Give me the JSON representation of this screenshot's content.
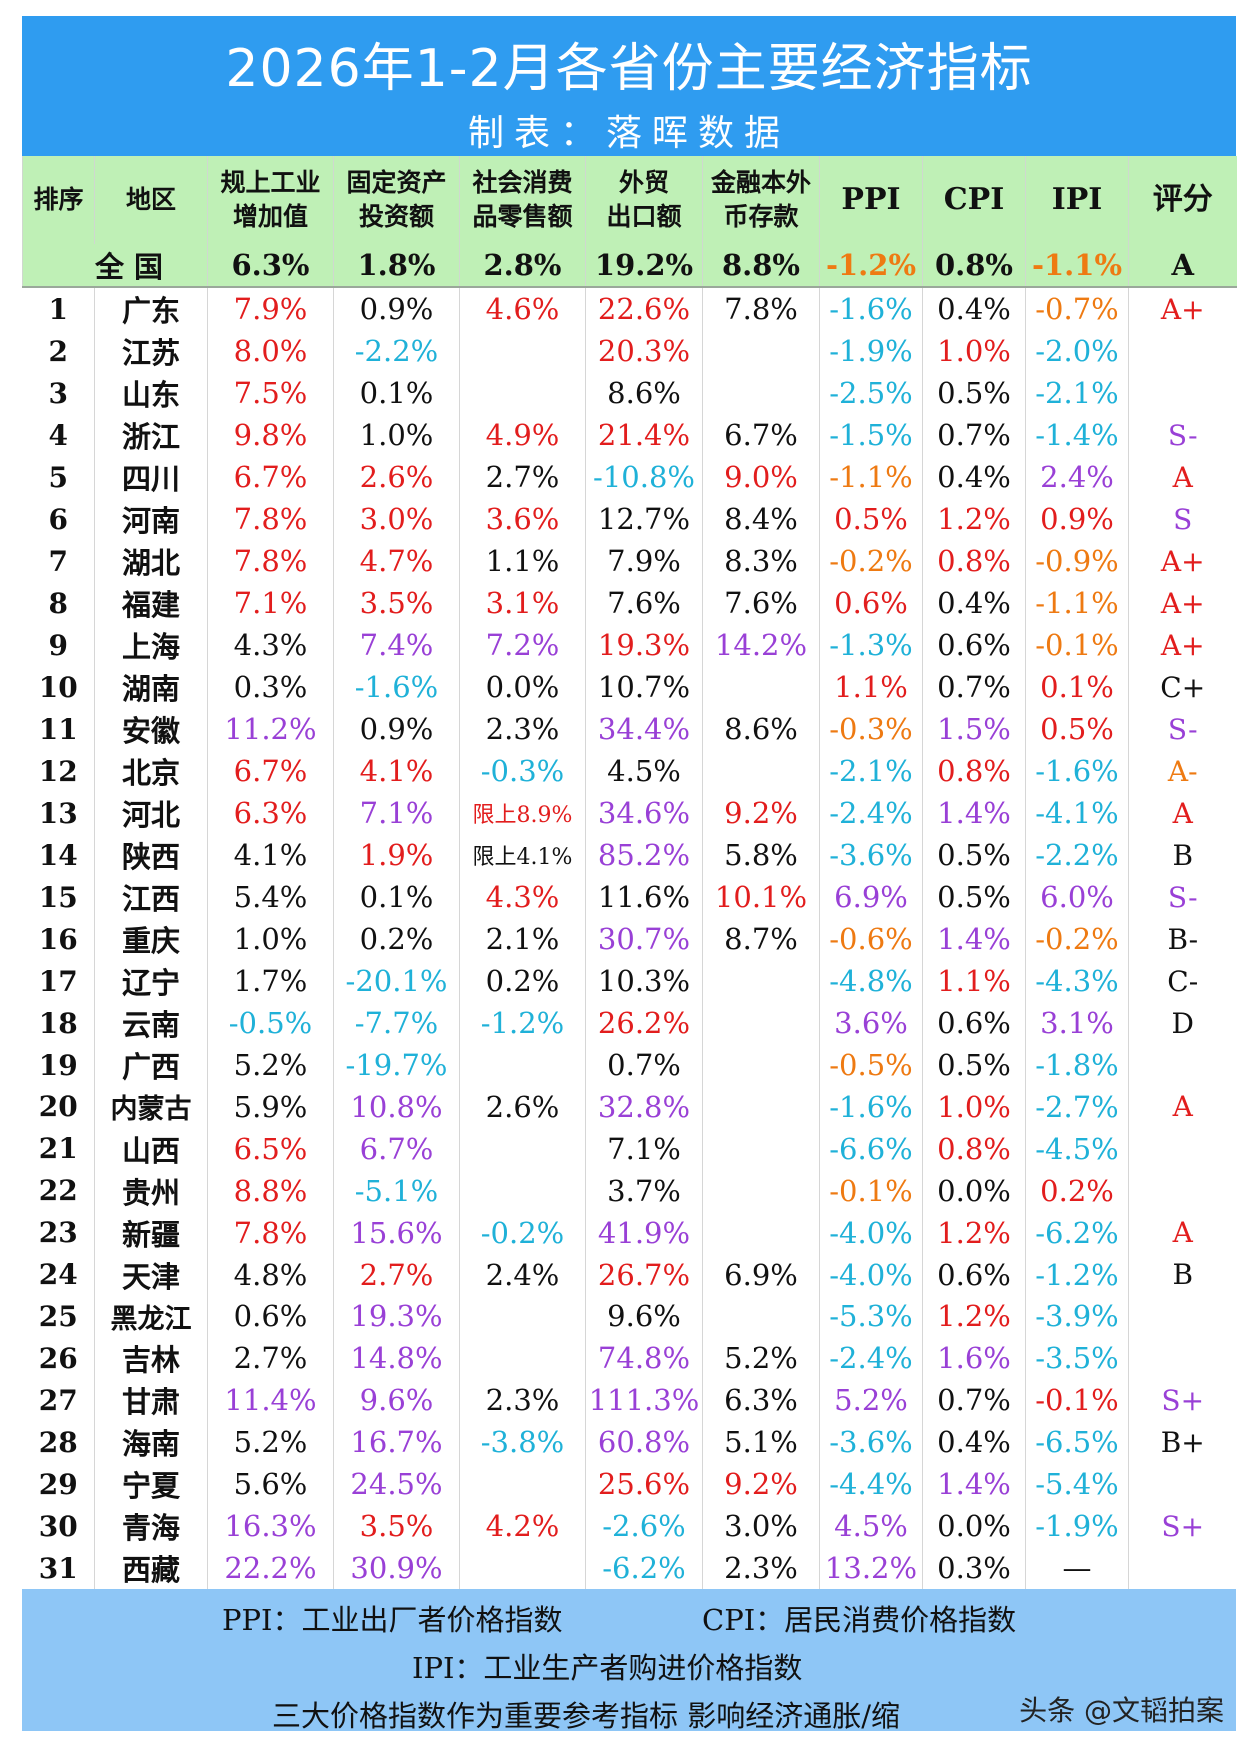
{
  "title": "2026年1-2月各省份主要经济指标",
  "subtitle": "制表：落晖数据",
  "headers": [
    "排序",
    "地区",
    "规上工业增加值",
    "固定资产投资额",
    "社会消费品零售额",
    "外贸出口额",
    "金融本外币存款",
    "PPI",
    "CPI",
    "IPI",
    "评分"
  ],
  "header_lines": [
    [
      "排序"
    ],
    [
      "地区"
    ],
    [
      "规上工业",
      "增加值"
    ],
    [
      "固定资产",
      "投资额"
    ],
    [
      "社会消费",
      "品零售额"
    ],
    [
      "外贸",
      "出口额"
    ],
    [
      "金融本外",
      "币存款"
    ],
    [
      "PPI"
    ],
    [
      "CPI"
    ],
    [
      "IPI"
    ],
    [
      "评分"
    ]
  ],
  "national": {
    "label": "全国",
    "cells": [
      [
        "6.3%",
        "black"
      ],
      [
        "1.8%",
        "black"
      ],
      [
        "2.8%",
        "black"
      ],
      [
        "19.2%",
        "black"
      ],
      [
        "8.8%",
        "black"
      ],
      [
        "-1.2%",
        "orange"
      ],
      [
        "0.8%",
        "black"
      ],
      [
        "-1.1%",
        "orange"
      ],
      [
        "A",
        "black"
      ]
    ]
  },
  "colors": {
    "black": "#111111",
    "red": "#e21d1d",
    "cyan": "#1fb1d8",
    "purple": "#9940d6",
    "orange": "#ee7a12",
    "banner": "#2f9cf0",
    "header_bg": "#bff0b6",
    "footer_bg": "#8ec6f6"
  },
  "rows": [
    [
      "1",
      "广东",
      [
        [
          "7.9%",
          "red"
        ],
        [
          "0.9%",
          "black"
        ],
        [
          "4.6%",
          "red"
        ],
        [
          "22.6%",
          "red"
        ],
        [
          "7.8%",
          "black"
        ],
        [
          "-1.6%",
          "cyan"
        ],
        [
          "0.4%",
          "black"
        ],
        [
          "-0.7%",
          "orange"
        ],
        [
          "A+",
          "red"
        ]
      ]
    ],
    [
      "2",
      "江苏",
      [
        [
          "8.0%",
          "red"
        ],
        [
          "-2.2%",
          "cyan"
        ],
        [
          "",
          "black"
        ],
        [
          "20.3%",
          "red"
        ],
        [
          "",
          "black"
        ],
        [
          "-1.9%",
          "cyan"
        ],
        [
          "1.0%",
          "red"
        ],
        [
          "-2.0%",
          "cyan"
        ],
        [
          "",
          "black"
        ]
      ]
    ],
    [
      "3",
      "山东",
      [
        [
          "7.5%",
          "red"
        ],
        [
          "0.1%",
          "black"
        ],
        [
          "",
          "black"
        ],
        [
          "8.6%",
          "black"
        ],
        [
          "",
          "black"
        ],
        [
          "-2.5%",
          "cyan"
        ],
        [
          "0.5%",
          "black"
        ],
        [
          "-2.1%",
          "cyan"
        ],
        [
          "",
          "black"
        ]
      ]
    ],
    [
      "4",
      "浙江",
      [
        [
          "9.8%",
          "red"
        ],
        [
          "1.0%",
          "black"
        ],
        [
          "4.9%",
          "red"
        ],
        [
          "21.4%",
          "red"
        ],
        [
          "6.7%",
          "black"
        ],
        [
          "-1.5%",
          "cyan"
        ],
        [
          "0.7%",
          "black"
        ],
        [
          "-1.4%",
          "cyan"
        ],
        [
          "S-",
          "purple"
        ]
      ]
    ],
    [
      "5",
      "四川",
      [
        [
          "6.7%",
          "red"
        ],
        [
          "2.6%",
          "red"
        ],
        [
          "2.7%",
          "black"
        ],
        [
          "-10.8%",
          "cyan"
        ],
        [
          "9.0%",
          "red"
        ],
        [
          "-1.1%",
          "orange"
        ],
        [
          "0.4%",
          "black"
        ],
        [
          "2.4%",
          "purple"
        ],
        [
          "A",
          "red"
        ]
      ]
    ],
    [
      "6",
      "河南",
      [
        [
          "7.8%",
          "red"
        ],
        [
          "3.0%",
          "red"
        ],
        [
          "3.6%",
          "red"
        ],
        [
          "12.7%",
          "black"
        ],
        [
          "8.4%",
          "black"
        ],
        [
          "0.5%",
          "red"
        ],
        [
          "1.2%",
          "red"
        ],
        [
          "0.9%",
          "red"
        ],
        [
          "S",
          "purple"
        ]
      ]
    ],
    [
      "7",
      "湖北",
      [
        [
          "7.8%",
          "red"
        ],
        [
          "4.7%",
          "red"
        ],
        [
          "1.1%",
          "black"
        ],
        [
          "7.9%",
          "black"
        ],
        [
          "8.3%",
          "black"
        ],
        [
          "-0.2%",
          "orange"
        ],
        [
          "0.8%",
          "red"
        ],
        [
          "-0.9%",
          "orange"
        ],
        [
          "A+",
          "red"
        ]
      ]
    ],
    [
      "8",
      "福建",
      [
        [
          "7.1%",
          "red"
        ],
        [
          "3.5%",
          "red"
        ],
        [
          "3.1%",
          "red"
        ],
        [
          "7.6%",
          "black"
        ],
        [
          "7.6%",
          "black"
        ],
        [
          "0.6%",
          "red"
        ],
        [
          "0.4%",
          "black"
        ],
        [
          "-1.1%",
          "orange"
        ],
        [
          "A+",
          "red"
        ]
      ]
    ],
    [
      "9",
      "上海",
      [
        [
          "4.3%",
          "black"
        ],
        [
          "7.4%",
          "purple"
        ],
        [
          "7.2%",
          "purple"
        ],
        [
          "19.3%",
          "red"
        ],
        [
          "14.2%",
          "purple"
        ],
        [
          "-1.3%",
          "cyan"
        ],
        [
          "0.6%",
          "black"
        ],
        [
          "-0.1%",
          "orange"
        ],
        [
          "A+",
          "red"
        ]
      ]
    ],
    [
      "10",
      "湖南",
      [
        [
          "0.3%",
          "black"
        ],
        [
          "-1.6%",
          "cyan"
        ],
        [
          "0.0%",
          "black"
        ],
        [
          "10.7%",
          "black"
        ],
        [
          "",
          "black"
        ],
        [
          "1.1%",
          "red"
        ],
        [
          "0.7%",
          "black"
        ],
        [
          "0.1%",
          "red"
        ],
        [
          "C+",
          "black"
        ]
      ]
    ],
    [
      "11",
      "安徽",
      [
        [
          "11.2%",
          "purple"
        ],
        [
          "0.9%",
          "black"
        ],
        [
          "2.3%",
          "black"
        ],
        [
          "34.4%",
          "purple"
        ],
        [
          "8.6%",
          "black"
        ],
        [
          "-0.3%",
          "orange"
        ],
        [
          "1.5%",
          "purple"
        ],
        [
          "0.5%",
          "red"
        ],
        [
          "S-",
          "purple"
        ]
      ]
    ],
    [
      "12",
      "北京",
      [
        [
          "6.7%",
          "red"
        ],
        [
          "4.1%",
          "red"
        ],
        [
          "-0.3%",
          "cyan"
        ],
        [
          "4.5%",
          "black"
        ],
        [
          "",
          "black"
        ],
        [
          "-2.1%",
          "cyan"
        ],
        [
          "0.8%",
          "red"
        ],
        [
          "-1.6%",
          "cyan"
        ],
        [
          "A-",
          "orange"
        ]
      ]
    ],
    [
      "13",
      "河北",
      [
        [
          "6.3%",
          "red"
        ],
        [
          "7.1%",
          "purple"
        ],
        [
          "限上8.9%",
          "red"
        ],
        [
          "34.6%",
          "purple"
        ],
        [
          "9.2%",
          "red"
        ],
        [
          "-2.4%",
          "cyan"
        ],
        [
          "1.4%",
          "purple"
        ],
        [
          "-4.1%",
          "cyan"
        ],
        [
          "A",
          "red"
        ]
      ]
    ],
    [
      "14",
      "陕西",
      [
        [
          "4.1%",
          "black"
        ],
        [
          "1.9%",
          "red"
        ],
        [
          "限上4.1%",
          "black"
        ],
        [
          "85.2%",
          "purple"
        ],
        [
          "5.8%",
          "black"
        ],
        [
          "-3.6%",
          "cyan"
        ],
        [
          "0.5%",
          "black"
        ],
        [
          "-2.2%",
          "cyan"
        ],
        [
          "B",
          "black"
        ]
      ]
    ],
    [
      "15",
      "江西",
      [
        [
          "5.4%",
          "black"
        ],
        [
          "0.1%",
          "black"
        ],
        [
          "4.3%",
          "red"
        ],
        [
          "11.6%",
          "black"
        ],
        [
          "10.1%",
          "red"
        ],
        [
          "6.9%",
          "purple"
        ],
        [
          "0.5%",
          "black"
        ],
        [
          "6.0%",
          "purple"
        ],
        [
          "S-",
          "purple"
        ]
      ]
    ],
    [
      "16",
      "重庆",
      [
        [
          "1.0%",
          "black"
        ],
        [
          "0.2%",
          "black"
        ],
        [
          "2.1%",
          "black"
        ],
        [
          "30.7%",
          "purple"
        ],
        [
          "8.7%",
          "black"
        ],
        [
          "-0.6%",
          "orange"
        ],
        [
          "1.4%",
          "purple"
        ],
        [
          "-0.2%",
          "orange"
        ],
        [
          "B-",
          "black"
        ]
      ]
    ],
    [
      "17",
      "辽宁",
      [
        [
          "1.7%",
          "black"
        ],
        [
          "-20.1%",
          "cyan"
        ],
        [
          "0.2%",
          "black"
        ],
        [
          "10.3%",
          "black"
        ],
        [
          "",
          "black"
        ],
        [
          "-4.8%",
          "cyan"
        ],
        [
          "1.1%",
          "red"
        ],
        [
          "-4.3%",
          "cyan"
        ],
        [
          "C-",
          "black"
        ]
      ]
    ],
    [
      "18",
      "云南",
      [
        [
          "-0.5%",
          "cyan"
        ],
        [
          "-7.7%",
          "cyan"
        ],
        [
          "-1.2%",
          "cyan"
        ],
        [
          "26.2%",
          "red"
        ],
        [
          "",
          "black"
        ],
        [
          "3.6%",
          "purple"
        ],
        [
          "0.6%",
          "black"
        ],
        [
          "3.1%",
          "purple"
        ],
        [
          "D",
          "black"
        ]
      ]
    ],
    [
      "19",
      "广西",
      [
        [
          "5.2%",
          "black"
        ],
        [
          "-19.7%",
          "cyan"
        ],
        [
          "",
          "black"
        ],
        [
          "0.7%",
          "black"
        ],
        [
          "",
          "black"
        ],
        [
          "-0.5%",
          "orange"
        ],
        [
          "0.5%",
          "black"
        ],
        [
          "-1.8%",
          "cyan"
        ],
        [
          "",
          "black"
        ]
      ]
    ],
    [
      "20",
      "内蒙古",
      [
        [
          "5.9%",
          "black"
        ],
        [
          "10.8%",
          "purple"
        ],
        [
          "2.6%",
          "black"
        ],
        [
          "32.8%",
          "purple"
        ],
        [
          "",
          "black"
        ],
        [
          "-1.6%",
          "cyan"
        ],
        [
          "1.0%",
          "red"
        ],
        [
          "-2.7%",
          "cyan"
        ],
        [
          "A",
          "red"
        ]
      ]
    ],
    [
      "21",
      "山西",
      [
        [
          "6.5%",
          "red"
        ],
        [
          "6.7%",
          "purple"
        ],
        [
          "",
          "black"
        ],
        [
          "7.1%",
          "black"
        ],
        [
          "",
          "black"
        ],
        [
          "-6.6%",
          "cyan"
        ],
        [
          "0.8%",
          "red"
        ],
        [
          "-4.5%",
          "cyan"
        ],
        [
          "",
          "black"
        ]
      ]
    ],
    [
      "22",
      "贵州",
      [
        [
          "8.8%",
          "red"
        ],
        [
          "-5.1%",
          "cyan"
        ],
        [
          "",
          "black"
        ],
        [
          "3.7%",
          "black"
        ],
        [
          "",
          "black"
        ],
        [
          "-0.1%",
          "orange"
        ],
        [
          "0.0%",
          "black"
        ],
        [
          "0.2%",
          "red"
        ],
        [
          "",
          "black"
        ]
      ]
    ],
    [
      "23",
      "新疆",
      [
        [
          "7.8%",
          "red"
        ],
        [
          "15.6%",
          "purple"
        ],
        [
          "-0.2%",
          "cyan"
        ],
        [
          "41.9%",
          "purple"
        ],
        [
          "",
          "black"
        ],
        [
          "-4.0%",
          "cyan"
        ],
        [
          "1.2%",
          "red"
        ],
        [
          "-6.2%",
          "cyan"
        ],
        [
          "A",
          "red"
        ]
      ]
    ],
    [
      "24",
      "天津",
      [
        [
          "4.8%",
          "black"
        ],
        [
          "2.7%",
          "red"
        ],
        [
          "2.4%",
          "black"
        ],
        [
          "26.7%",
          "red"
        ],
        [
          "6.9%",
          "black"
        ],
        [
          "-4.0%",
          "cyan"
        ],
        [
          "0.6%",
          "black"
        ],
        [
          "-1.2%",
          "cyan"
        ],
        [
          "B",
          "black"
        ]
      ]
    ],
    [
      "25",
      "黑龙江",
      [
        [
          "0.6%",
          "black"
        ],
        [
          "19.3%",
          "purple"
        ],
        [
          "",
          "black"
        ],
        [
          "9.6%",
          "black"
        ],
        [
          "",
          "black"
        ],
        [
          "-5.3%",
          "cyan"
        ],
        [
          "1.2%",
          "red"
        ],
        [
          "-3.9%",
          "cyan"
        ],
        [
          "",
          "black"
        ]
      ]
    ],
    [
      "26",
      "吉林",
      [
        [
          "2.7%",
          "black"
        ],
        [
          "14.8%",
          "purple"
        ],
        [
          "",
          "black"
        ],
        [
          "74.8%",
          "purple"
        ],
        [
          "5.2%",
          "black"
        ],
        [
          "-2.4%",
          "cyan"
        ],
        [
          "1.6%",
          "purple"
        ],
        [
          "-3.5%",
          "cyan"
        ],
        [
          "",
          "black"
        ]
      ]
    ],
    [
      "27",
      "甘肃",
      [
        [
          "11.4%",
          "purple"
        ],
        [
          "9.6%",
          "purple"
        ],
        [
          "2.3%",
          "black"
        ],
        [
          "111.3%",
          "purple"
        ],
        [
          "6.3%",
          "black"
        ],
        [
          "5.2%",
          "purple"
        ],
        [
          "0.7%",
          "black"
        ],
        [
          "-0.1%",
          "red"
        ],
        [
          "S+",
          "purple"
        ]
      ]
    ],
    [
      "28",
      "海南",
      [
        [
          "5.2%",
          "black"
        ],
        [
          "16.7%",
          "purple"
        ],
        [
          "-3.8%",
          "cyan"
        ],
        [
          "60.8%",
          "purple"
        ],
        [
          "5.1%",
          "black"
        ],
        [
          "-3.6%",
          "cyan"
        ],
        [
          "0.4%",
          "black"
        ],
        [
          "-6.5%",
          "cyan"
        ],
        [
          "B+",
          "black"
        ]
      ]
    ],
    [
      "29",
      "宁夏",
      [
        [
          "5.6%",
          "black"
        ],
        [
          "24.5%",
          "purple"
        ],
        [
          "",
          "black"
        ],
        [
          "25.6%",
          "red"
        ],
        [
          "9.2%",
          "red"
        ],
        [
          "-4.4%",
          "cyan"
        ],
        [
          "1.4%",
          "purple"
        ],
        [
          "-5.4%",
          "cyan"
        ],
        [
          "",
          "black"
        ]
      ]
    ],
    [
      "30",
      "青海",
      [
        [
          "16.3%",
          "purple"
        ],
        [
          "3.5%",
          "red"
        ],
        [
          "4.2%",
          "red"
        ],
        [
          "-2.6%",
          "cyan"
        ],
        [
          "3.0%",
          "black"
        ],
        [
          "4.5%",
          "purple"
        ],
        [
          "0.0%",
          "black"
        ],
        [
          "-1.9%",
          "cyan"
        ],
        [
          "S+",
          "purple"
        ]
      ]
    ],
    [
      "31",
      "西藏",
      [
        [
          "22.2%",
          "purple"
        ],
        [
          "30.9%",
          "purple"
        ],
        [
          "",
          "black"
        ],
        [
          "-6.2%",
          "cyan"
        ],
        [
          "2.3%",
          "black"
        ],
        [
          "13.2%",
          "purple"
        ],
        [
          "0.3%",
          "black"
        ],
        [
          "—",
          "black"
        ],
        [
          "",
          "black"
        ]
      ]
    ]
  ],
  "footer": {
    "ppi_note": "PPI：工业出厂者价格指数",
    "cpi_note": "CPI：居民消费价格指数",
    "ipi_note": "IPI：工业生产者购进价格指数",
    "remark": "三大价格指数作为重要参考指标   影响经济通胀/缩",
    "watermark": "头条 @文韬拍案"
  }
}
